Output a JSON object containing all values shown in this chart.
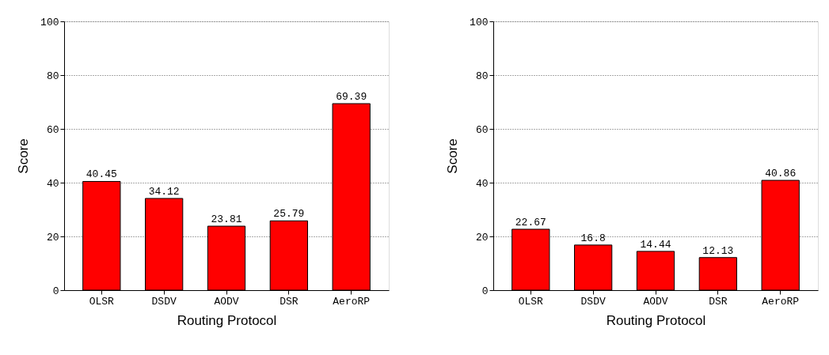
{
  "chart_data": [
    {
      "type": "bar",
      "categories": [
        "OLSR",
        "DSDV",
        "AODV",
        "DSR",
        "AeroRP"
      ],
      "values": [
        40.45,
        34.12,
        23.81,
        25.79,
        69.39
      ],
      "color": "#ff0000",
      "xlabel": "Routing Protocol",
      "ylabel": "Score",
      "ylim": [
        0,
        100
      ],
      "yticks": [
        0,
        20,
        40,
        60,
        80,
        100
      ],
      "grid": "y",
      "data_labels": true
    },
    {
      "type": "bar",
      "categories": [
        "OLSR",
        "DSDV",
        "AODV",
        "DSR",
        "AeroRP"
      ],
      "values": [
        22.67,
        16.8,
        14.44,
        12.13,
        40.86
      ],
      "color": "#ff0000",
      "xlabel": "Routing Protocol",
      "ylabel": "Score",
      "ylim": [
        0,
        100
      ],
      "yticks": [
        0,
        20,
        40,
        60,
        80,
        100
      ],
      "grid": "y",
      "data_labels": true
    }
  ]
}
